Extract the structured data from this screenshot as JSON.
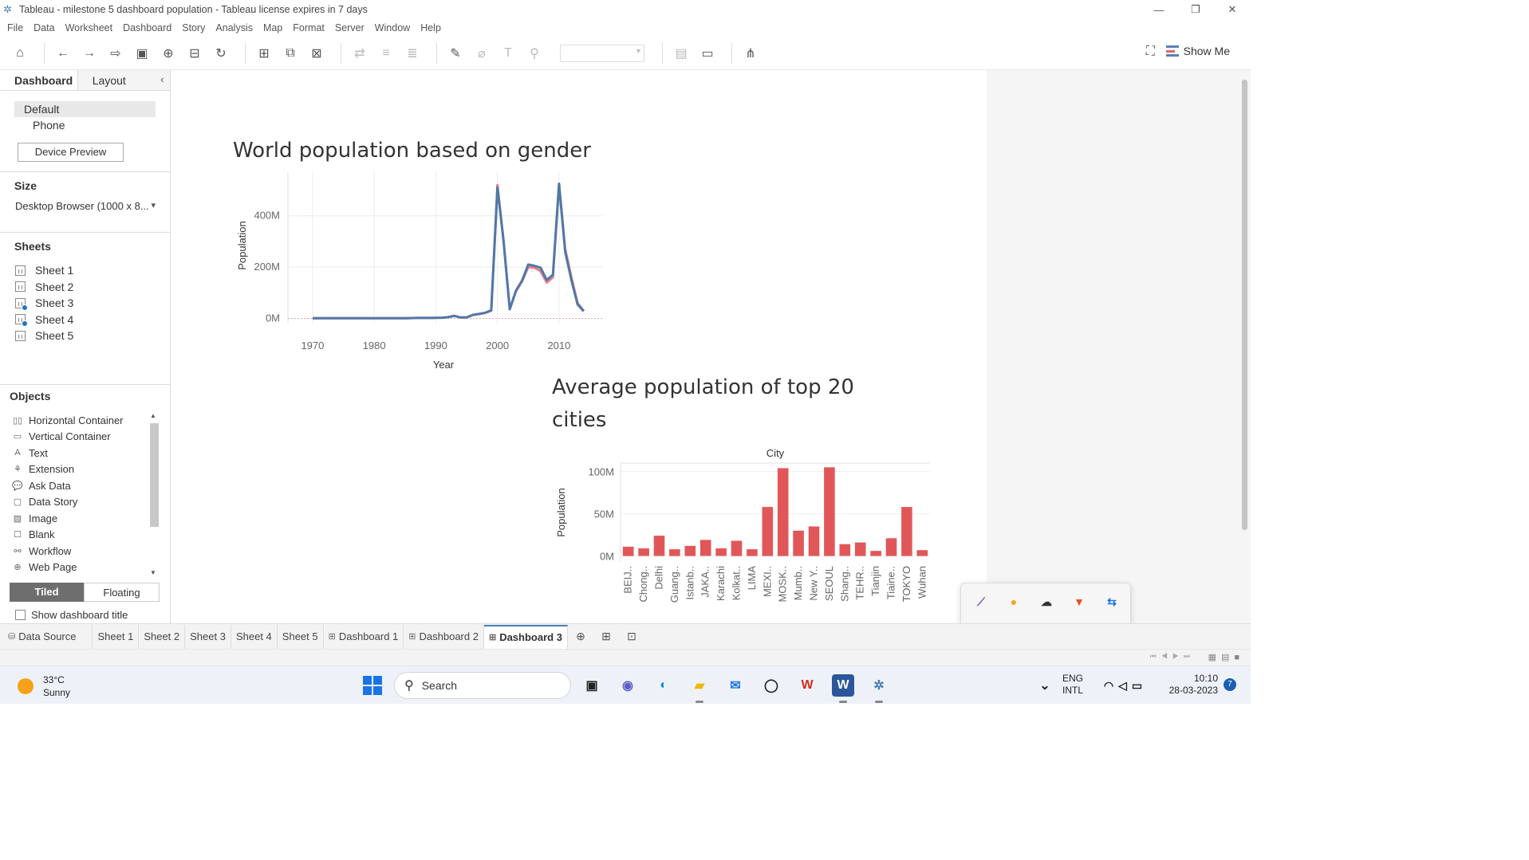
{
  "window": {
    "title": "Tableau - milestone 5 dashboard population - Tableau license expires in 7 days",
    "min_glyph": "—",
    "restore_glyph": "❐",
    "close_glyph": "✕"
  },
  "menu": [
    "File",
    "Data",
    "Worksheet",
    "Dashboard",
    "Story",
    "Analysis",
    "Map",
    "Format",
    "Server",
    "Window",
    "Help"
  ],
  "toolbar": {
    "show_me": "Show Me"
  },
  "left_panel": {
    "tabs": {
      "dashboard": "Dashboard",
      "layout": "Layout"
    },
    "devices": [
      "Default",
      "Phone"
    ],
    "device_preview": "Device Preview",
    "size_heading": "Size",
    "size_value": "Desktop Browser (1000 x 8...",
    "sheets_heading": "Sheets",
    "sheets": [
      "Sheet 1",
      "Sheet 2",
      "Sheet 3",
      "Sheet 4",
      "Sheet 5"
    ],
    "objects_heading": "Objects",
    "objects": [
      "Horizontal Container",
      "Vertical Container",
      "Text",
      "Extension",
      "Ask Data",
      "Data Story",
      "Image",
      "Blank",
      "Workflow",
      "Web Page"
    ],
    "tiled": "Tiled",
    "floating": "Floating",
    "show_title": "Show dashboard title"
  },
  "line_chart_title": "World population based on gender",
  "bar_chart_title_line1": "Average population of top 20",
  "bar_chart_title_line2": "cities",
  "chart_data": [
    {
      "type": "line",
      "title": "World population based on gender",
      "xlabel": "Year",
      "ylabel": "Population",
      "xlim": [
        1966,
        2017
      ],
      "ylim": [
        -20000000,
        570000000
      ],
      "x_ticks": [
        1970,
        1980,
        1990,
        2000,
        2010
      ],
      "y_ticks": [
        {
          "v": 0,
          "label": "0M"
        },
        {
          "v": 200000000,
          "label": "200M"
        },
        {
          "v": 400000000,
          "label": "400M"
        }
      ],
      "grid": true,
      "x": [
        1970,
        1975,
        1980,
        1985,
        1987,
        1989,
        1991,
        1992,
        1993,
        1994,
        1995,
        1996,
        1997,
        1998,
        1999,
        2000,
        2001,
        2002,
        2003,
        2004,
        2005,
        2006,
        2007,
        2008,
        2009,
        2010,
        2011,
        2012,
        2013,
        2014
      ],
      "series": [
        {
          "color": "#ee7b8a",
          "values": [
            1000000,
            1000000,
            1000000,
            1000000,
            2000000,
            2000000,
            3000000,
            5000000,
            10000000,
            4000000,
            4000000,
            14000000,
            17000000,
            22000000,
            30000000,
            520000000,
            300000000,
            36000000,
            105000000,
            145000000,
            200000000,
            198000000,
            185000000,
            140000000,
            160000000,
            520000000,
            270000000,
            160000000,
            60000000,
            30000000
          ]
        },
        {
          "color": "#4e79a7",
          "values": [
            1000000,
            1000000,
            1000000,
            1000000,
            2000000,
            2000000,
            3000000,
            5000000,
            10000000,
            4000000,
            4000000,
            14000000,
            18000000,
            22000000,
            32000000,
            510000000,
            300000000,
            36000000,
            108000000,
            148000000,
            210000000,
            205000000,
            198000000,
            150000000,
            170000000,
            525000000,
            260000000,
            150000000,
            55000000,
            28000000
          ]
        }
      ]
    },
    {
      "type": "bar",
      "title": "Average population of top 20 cities",
      "header": "City",
      "ylabel": "Population",
      "ylim": [
        -7000000,
        110000000
      ],
      "y_ticks": [
        {
          "v": 0,
          "label": "0M"
        },
        {
          "v": 50000000,
          "label": "50M"
        },
        {
          "v": 100000000,
          "label": "100M"
        }
      ],
      "color": "#e15759",
      "categories": [
        "BEIJ..",
        "Chong..",
        "Delhi",
        "Guang..",
        "Istanb..",
        "JAKA..",
        "Karachi",
        "Kolkat..",
        "LIMA",
        "MEXI..",
        "MOSK..",
        "Mumb..",
        "New Y..",
        "SEOUL",
        "Shang..",
        "TEHR..",
        "Tianjin",
        "Tiaine..",
        "TOKYO",
        "Wuhan"
      ],
      "values": [
        11000000,
        9000000,
        24000000,
        8000000,
        12000000,
        19000000,
        9000000,
        18000000,
        8000000,
        58000000,
        104000000,
        30000000,
        35000000,
        105000000,
        14000000,
        16000000,
        6000000,
        21000000,
        58000000,
        7000000
      ]
    }
  ],
  "sheet_tabs": {
    "data_source": "Data Source",
    "tabs": [
      "Sheet 1",
      "Sheet 2",
      "Sheet 3",
      "Sheet 4",
      "Sheet 5"
    ],
    "dashboards": [
      "Dashboard 1",
      "Dashboard 2",
      "Dashboard 3"
    ]
  },
  "taskbar": {
    "temp": "33°C",
    "weather": "Sunny",
    "search": "Search",
    "lang1": "ENG",
    "lang2": "INTL",
    "time": "10:10",
    "date": "28-03-2023",
    "notifications": "7"
  }
}
